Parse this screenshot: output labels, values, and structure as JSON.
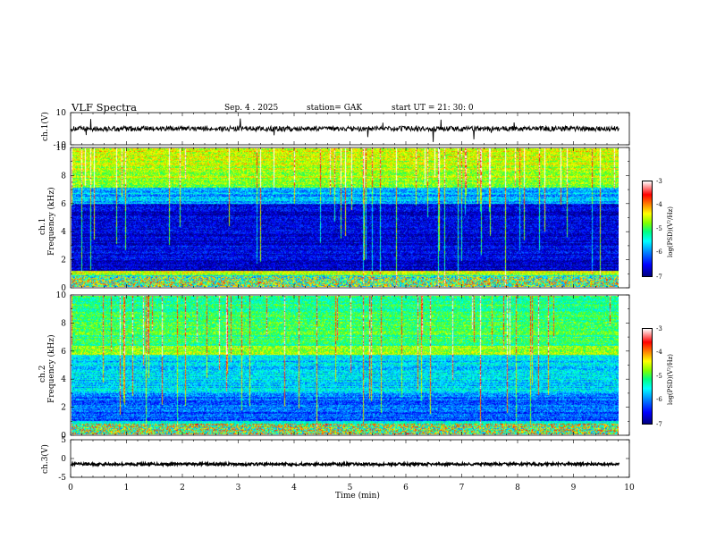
{
  "header": {
    "title": "VLF  Spectra",
    "date": "Sep. 4  . 2025",
    "station": "station= GAK",
    "start": "start  UT  =   21: 30: 0"
  },
  "chart_data": [
    {
      "type": "line",
      "panel": "ch1-waveform",
      "ylabel": "ch.1(V)",
      "ylim": [
        -10,
        10
      ],
      "yticks": [
        "10",
        "-10"
      ],
      "xlim": [
        0,
        10
      ],
      "baseline": 0,
      "color": "#000000"
    },
    {
      "type": "heatmap",
      "panel": "ch1-spectrogram",
      "title": "ch.1",
      "ylabel": "Frequency  (kHz)",
      "ylim": [
        0,
        10
      ],
      "yticks": [
        "0",
        "2",
        "4",
        "6",
        "8",
        "10"
      ],
      "xlim": [
        0,
        9.82
      ],
      "colorbar": {
        "label": "log(PSD)(V²/Hz)",
        "range": [
          -7,
          -3
        ],
        "ticks": [
          "-3",
          "-4",
          "-5",
          "-6",
          "-7"
        ]
      }
    },
    {
      "type": "heatmap",
      "panel": "ch2-spectrogram",
      "title": "ch.2",
      "ylabel": "Frequency  (kHz)",
      "ylim": [
        0,
        10
      ],
      "yticks": [
        "0",
        "2",
        "4",
        "6",
        "8",
        "10"
      ],
      "xlim": [
        0,
        9.82
      ],
      "colorbar": {
        "label": "log(PSD)(V²/Hz)",
        "range": [
          -7,
          -3
        ],
        "ticks": [
          "-3",
          "-4",
          "-5",
          "-6",
          "-7"
        ]
      }
    },
    {
      "type": "line",
      "panel": "ch3-waveform",
      "ylabel": "ch.3(V)",
      "ylim": [
        -5,
        5
      ],
      "yticks": [
        "5",
        "0",
        "-5"
      ],
      "xlim": [
        0,
        10
      ],
      "baseline": -1.5,
      "color": "#000000"
    }
  ],
  "xaxis": {
    "label": "Time  (min)",
    "ticks": [
      "0",
      "1",
      "2",
      "3",
      "4",
      "5",
      "6",
      "7",
      "8",
      "9",
      "10"
    ]
  },
  "colormap": [
    "#000080",
    "#0000ff",
    "#0080ff",
    "#00ffff",
    "#00ff80",
    "#80ff00",
    "#ffff00",
    "#ff8000",
    "#ff0000",
    "#ffffff"
  ]
}
